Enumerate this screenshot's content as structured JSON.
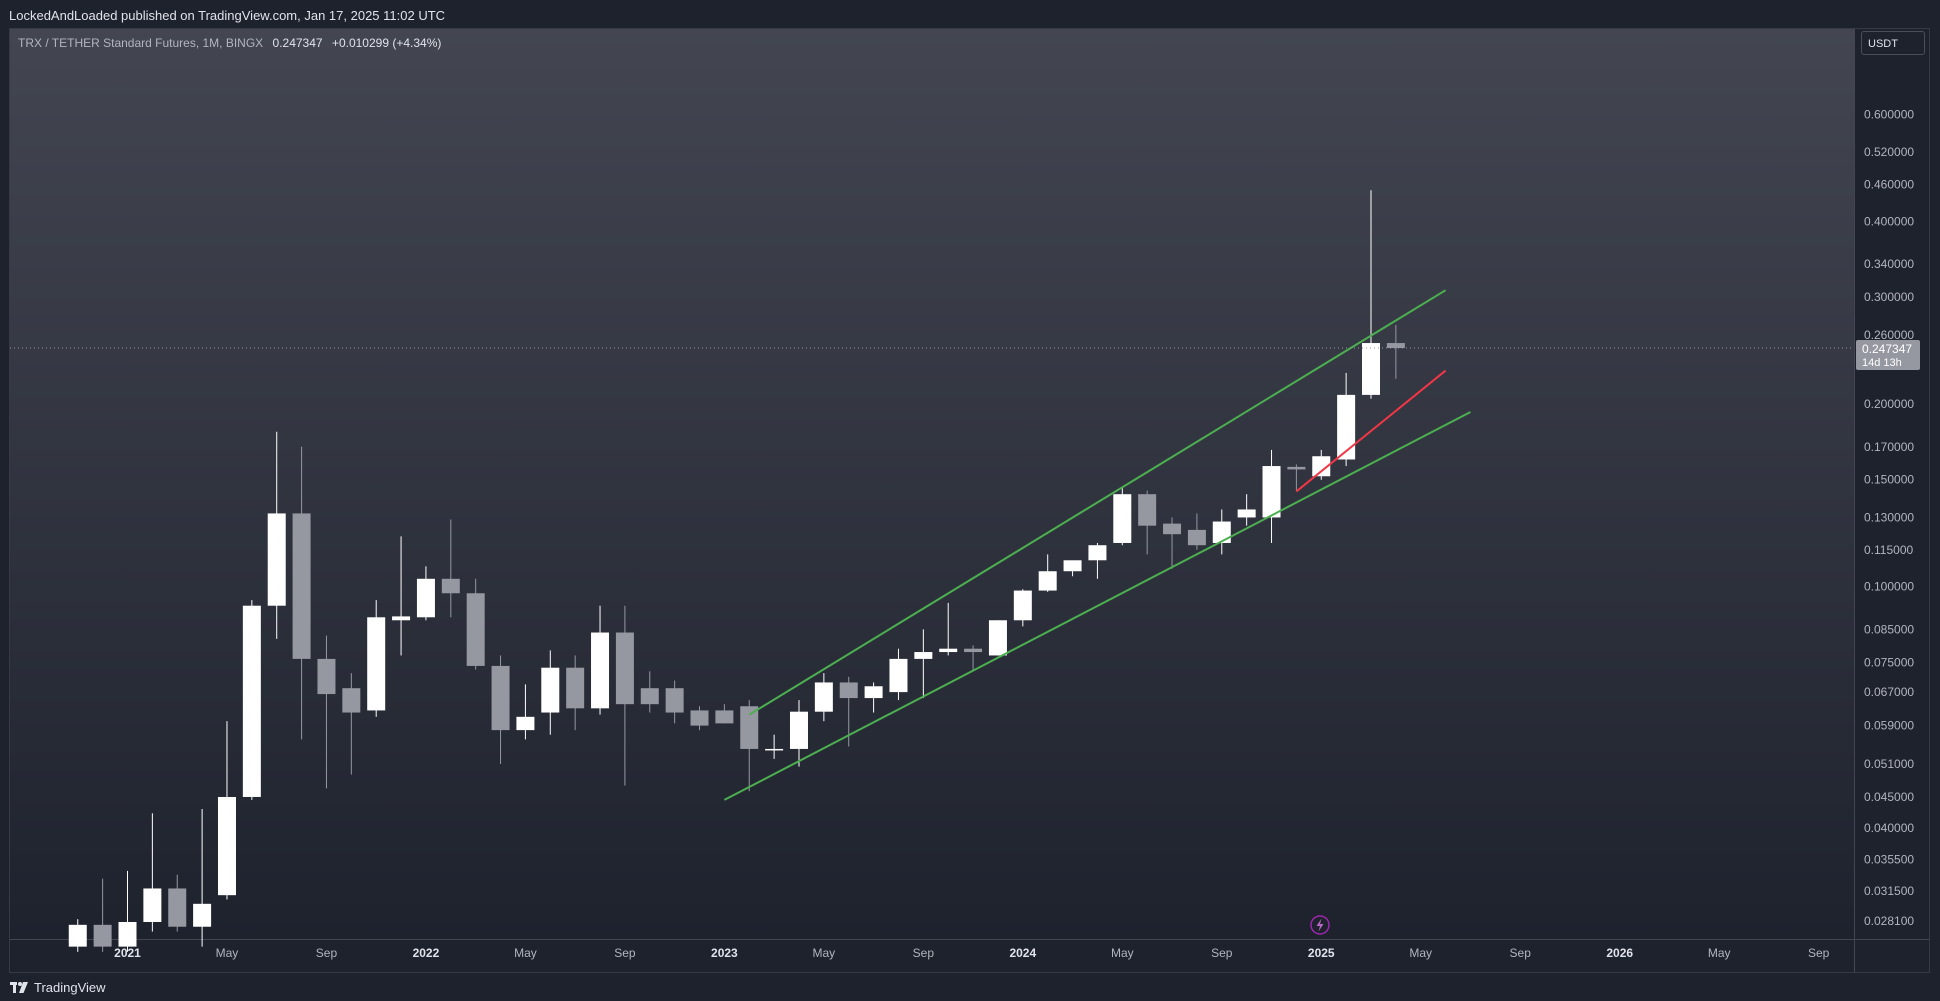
{
  "header": {
    "publisher_text": "LockedAndLoaded published on TradingView.com, Jan 17, 2025 11:02 UTC"
  },
  "footer": {
    "brand": "TradingView"
  },
  "legend": {
    "symbol": "TRX / TETHER Standard Futures, 1M, BINGX",
    "last": "0.247347",
    "change": "+0.010299 (+4.34%)"
  },
  "price_scale": {
    "currency_button": "USDT"
  },
  "colors": {
    "background_top": "#434651",
    "background_bottom": "#1e222d",
    "up_candle": "#ffffff",
    "down_candle": "#9598a1",
    "channel_line": "#4caf50",
    "support_line": "#f23645",
    "price_line": "#9598a1",
    "event_marker": "#9c27b0"
  },
  "chart_data": {
    "type": "candlestick",
    "title": "TRX / TETHER Standard Futures, 1M, BINGX",
    "scale": "log",
    "y_ticks": [
      "0.600000",
      "0.520000",
      "0.460000",
      "0.400000",
      "0.340000",
      "0.300000",
      "0.260000",
      "0.200000",
      "0.170000",
      "0.150000",
      "0.130000",
      "0.115000",
      "0.100000",
      "0.085000",
      "0.075000",
      "0.067000",
      "0.059000",
      "0.051000",
      "0.045000",
      "0.040000",
      "0.035500",
      "0.031500",
      "0.028100"
    ],
    "x_ticks": [
      "2021",
      "May",
      "Sep",
      "2022",
      "May",
      "Sep",
      "2023",
      "May",
      "Sep",
      "2024",
      "May",
      "Sep",
      "2025",
      "May",
      "Sep",
      "2026",
      "May",
      "Sep"
    ],
    "ylim": [
      0.0265,
      0.68
    ],
    "last_price": {
      "value": 0.247347,
      "label": "0.247347",
      "countdown": "14d 13h"
    },
    "candles": [
      {
        "t": "2020-11",
        "o": 0.0255,
        "h": 0.0283,
        "l": 0.025,
        "c": 0.0277
      },
      {
        "t": "2020-12",
        "o": 0.0277,
        "h": 0.033,
        "l": 0.025,
        "c": 0.0255
      },
      {
        "t": "2021-01",
        "o": 0.0255,
        "h": 0.034,
        "l": 0.025,
        "c": 0.028
      },
      {
        "t": "2021-02",
        "o": 0.028,
        "h": 0.0423,
        "l": 0.027,
        "c": 0.0318
      },
      {
        "t": "2021-03",
        "o": 0.0318,
        "h": 0.0335,
        "l": 0.027,
        "c": 0.0275
      },
      {
        "t": "2021-04",
        "o": 0.0275,
        "h": 0.043,
        "l": 0.0255,
        "c": 0.03
      },
      {
        "t": "2021-05",
        "o": 0.031,
        "h": 0.06,
        "l": 0.0305,
        "c": 0.045
      },
      {
        "t": "2021-06",
        "o": 0.045,
        "h": 0.095,
        "l": 0.0445,
        "c": 0.093
      },
      {
        "t": "2021-07",
        "o": 0.093,
        "h": 0.18,
        "l": 0.082,
        "c": 0.132
      },
      {
        "t": "2021-08",
        "o": 0.132,
        "h": 0.17,
        "l": 0.056,
        "c": 0.076
      },
      {
        "t": "2021-09",
        "o": 0.076,
        "h": 0.083,
        "l": 0.0465,
        "c": 0.0665
      },
      {
        "t": "2021-10",
        "o": 0.068,
        "h": 0.072,
        "l": 0.049,
        "c": 0.062
      },
      {
        "t": "2021-11",
        "o": 0.0625,
        "h": 0.095,
        "l": 0.061,
        "c": 0.089
      },
      {
        "t": "2021-12",
        "o": 0.088,
        "h": 0.121,
        "l": 0.077,
        "c": 0.0893
      },
      {
        "t": "2022-01",
        "o": 0.089,
        "h": 0.108,
        "l": 0.088,
        "c": 0.103
      },
      {
        "t": "2022-02",
        "o": 0.103,
        "h": 0.129,
        "l": 0.089,
        "c": 0.0975
      },
      {
        "t": "2022-03",
        "o": 0.0975,
        "h": 0.103,
        "l": 0.073,
        "c": 0.074
      },
      {
        "t": "2022-04",
        "o": 0.074,
        "h": 0.077,
        "l": 0.051,
        "c": 0.058
      },
      {
        "t": "2022-05",
        "o": 0.058,
        "h": 0.069,
        "l": 0.056,
        "c": 0.061
      },
      {
        "t": "2022-06",
        "o": 0.062,
        "h": 0.0785,
        "l": 0.057,
        "c": 0.0735
      },
      {
        "t": "2022-07",
        "o": 0.0735,
        "h": 0.077,
        "l": 0.058,
        "c": 0.063
      },
      {
        "t": "2022-08",
        "o": 0.063,
        "h": 0.093,
        "l": 0.0615,
        "c": 0.084
      },
      {
        "t": "2022-09",
        "o": 0.084,
        "h": 0.093,
        "l": 0.047,
        "c": 0.064
      },
      {
        "t": "2022-10",
        "o": 0.068,
        "h": 0.0725,
        "l": 0.062,
        "c": 0.064
      },
      {
        "t": "2022-11",
        "o": 0.068,
        "h": 0.07,
        "l": 0.0595,
        "c": 0.062
      },
      {
        "t": "2022-12",
        "o": 0.0625,
        "h": 0.0635,
        "l": 0.058,
        "c": 0.059
      },
      {
        "t": "2023-01",
        "o": 0.0625,
        "h": 0.064,
        "l": 0.0595,
        "c": 0.0595
      },
      {
        "t": "2023-02",
        "o": 0.0635,
        "h": 0.065,
        "l": 0.046,
        "c": 0.054
      },
      {
        "t": "2023-03",
        "o": 0.054,
        "h": 0.057,
        "l": 0.052,
        "c": 0.054
      },
      {
        "t": "2023-04",
        "o": 0.054,
        "h": 0.065,
        "l": 0.0505,
        "c": 0.0622
      },
      {
        "t": "2023-05",
        "o": 0.0622,
        "h": 0.072,
        "l": 0.06,
        "c": 0.0695
      },
      {
        "t": "2023-06",
        "o": 0.0695,
        "h": 0.071,
        "l": 0.0545,
        "c": 0.0655
      },
      {
        "t": "2023-07",
        "o": 0.0655,
        "h": 0.0695,
        "l": 0.062,
        "c": 0.0685
      },
      {
        "t": "2023-08",
        "o": 0.067,
        "h": 0.079,
        "l": 0.065,
        "c": 0.076
      },
      {
        "t": "2023-09",
        "o": 0.076,
        "h": 0.085,
        "l": 0.0655,
        "c": 0.078
      },
      {
        "t": "2023-10",
        "o": 0.078,
        "h": 0.094,
        "l": 0.077,
        "c": 0.079
      },
      {
        "t": "2023-11",
        "o": 0.079,
        "h": 0.08,
        "l": 0.0725,
        "c": 0.078
      },
      {
        "t": "2023-12",
        "o": 0.077,
        "h": 0.088,
        "l": 0.077,
        "c": 0.088
      },
      {
        "t": "2024-01",
        "o": 0.088,
        "h": 0.099,
        "l": 0.086,
        "c": 0.0985
      },
      {
        "t": "2024-02",
        "o": 0.0985,
        "h": 0.113,
        "l": 0.098,
        "c": 0.106
      },
      {
        "t": "2024-03",
        "o": 0.106,
        "h": 0.11,
        "l": 0.104,
        "c": 0.1105
      },
      {
        "t": "2024-04",
        "o": 0.1105,
        "h": 0.118,
        "l": 0.103,
        "c": 0.117
      },
      {
        "t": "2024-05",
        "o": 0.118,
        "h": 0.146,
        "l": 0.117,
        "c": 0.142
      },
      {
        "t": "2024-06",
        "o": 0.142,
        "h": 0.144,
        "l": 0.113,
        "c": 0.126
      },
      {
        "t": "2024-07",
        "o": 0.127,
        "h": 0.13,
        "l": 0.107,
        "c": 0.122
      },
      {
        "t": "2024-08",
        "o": 0.124,
        "h": 0.132,
        "l": 0.115,
        "c": 0.117
      },
      {
        "t": "2024-09",
        "o": 0.118,
        "h": 0.134,
        "l": 0.113,
        "c": 0.128
      },
      {
        "t": "2024-10",
        "o": 0.13,
        "h": 0.142,
        "l": 0.126,
        "c": 0.134
      },
      {
        "t": "2024-11",
        "o": 0.13,
        "h": 0.168,
        "l": 0.118,
        "c": 0.158
      },
      {
        "t": "2024-12",
        "o": 0.1575,
        "h": 0.159,
        "l": 0.144,
        "c": 0.156
      },
      {
        "t": "2025-01",
        "o": 0.152,
        "h": 0.168,
        "l": 0.15,
        "c": 0.164
      },
      {
        "t": "2025-02",
        "o": 0.162,
        "h": 0.225,
        "l": 0.158,
        "c": 0.207
      },
      {
        "t": "2025-03",
        "o": 0.207,
        "h": 0.45,
        "l": 0.204,
        "c": 0.252
      },
      {
        "t": "2025-04",
        "o": 0.252,
        "h": 0.27,
        "l": 0.22,
        "c": 0.2473
      }
    ],
    "trend_lines": [
      {
        "name": "channel-upper",
        "color": "#4caf50",
        "from": [
          "2023-02",
          0.0615
        ],
        "to": [
          "2025-06",
          0.308
        ]
      },
      {
        "name": "channel-lower",
        "color": "#4caf50",
        "from": [
          "2023-01",
          0.0445
        ],
        "to": [
          "2025-07",
          0.194
        ]
      },
      {
        "name": "support",
        "color": "#f23645",
        "from": [
          "2024-12",
          0.1435
        ],
        "to": [
          "2025-06",
          0.227
        ]
      }
    ]
  }
}
